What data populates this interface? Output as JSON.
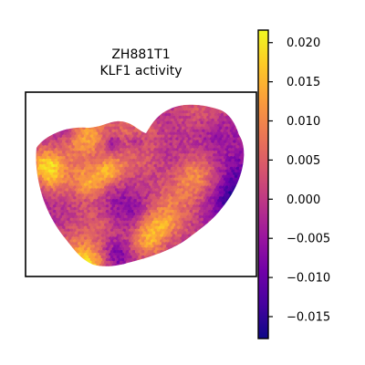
{
  "chart_data": {
    "type": "heatmap",
    "title_lines": [
      "ZH881T1",
      "KLF1 activity"
    ],
    "xlabel": "",
    "ylabel": "",
    "grid": false,
    "colormap": "plasma",
    "colormap_stops": [
      "#0d0887",
      "#46039f",
      "#7201a8",
      "#9c179e",
      "#bd3786",
      "#d8576b",
      "#ed7953",
      "#fb9f3a",
      "#fdca26",
      "#f0f921"
    ],
    "colorbar": {
      "position": "right",
      "vmin": -0.0178,
      "vmax": 0.0216,
      "ticks": [
        -0.015,
        -0.01,
        -0.005,
        0.0,
        0.005,
        0.01,
        0.015,
        0.02
      ],
      "tick_labels": [
        "−0.015",
        "−0.010",
        "−0.005",
        "0.000",
        "0.005",
        "0.010",
        "0.015",
        "0.020"
      ]
    },
    "tissue_shape": "heart-shaped spot array",
    "value_distribution": {
      "mostly_between": [
        -0.012,
        0.006
      ],
      "hotspots_up_to": 0.018
    }
  }
}
